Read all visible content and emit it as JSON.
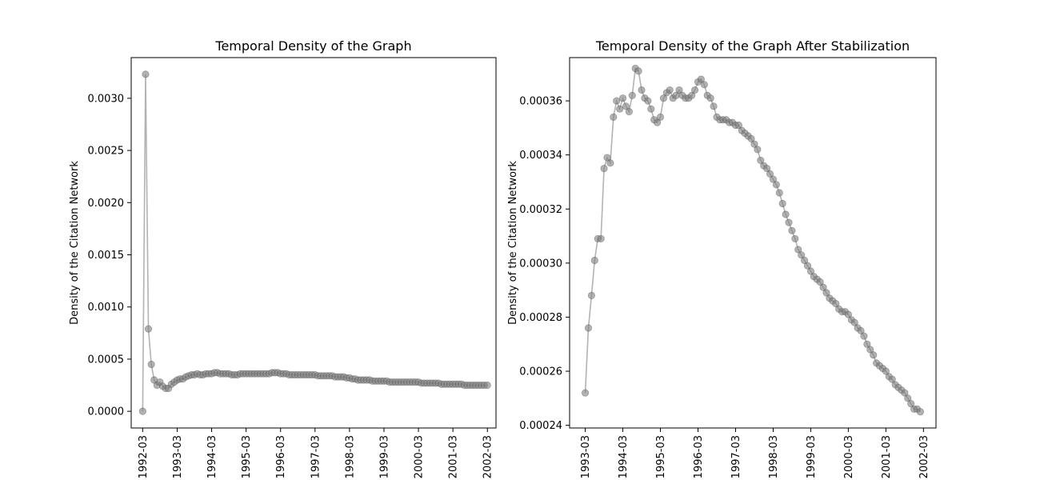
{
  "chart_data": [
    {
      "type": "line",
      "title": "Temporal Density of the Graph",
      "xlabel": "",
      "ylabel": "Density of the Citation Network",
      "xlim": [
        "1991-11",
        "2002-06"
      ],
      "ylim": [
        -0.00016,
        0.00339
      ],
      "yticks": [
        0.0,
        0.0005,
        0.001,
        0.0015,
        0.002,
        0.0025,
        0.003
      ],
      "ytick_labels": [
        "0.0000",
        "0.0005",
        "0.0010",
        "0.0015",
        "0.0020",
        "0.0025",
        "0.0030"
      ],
      "xtick_labels": [
        "1992-03",
        "1993-03",
        "1994-03",
        "1995-03",
        "1996-03",
        "1997-03",
        "1998-03",
        "1999-03",
        "2000-03",
        "2001-03",
        "2002-03"
      ],
      "grid": false,
      "marker": "circle",
      "color": "#808080",
      "series": [
        {
          "x_start": "1992-03",
          "x_step_months": 1,
          "values": [
            0.0,
            0.00323,
            0.00079,
            0.00045,
            0.0003,
            0.00025,
            0.00028,
            0.00024,
            0.00022,
            0.00022,
            0.00026,
            0.00028,
            0.0003,
            0.00031,
            0.00031,
            0.00033,
            0.00034,
            0.00035,
            0.00035,
            0.00036,
            0.00035,
            0.00035,
            0.00036,
            0.00036,
            0.00036,
            0.00037,
            0.00037,
            0.00036,
            0.00036,
            0.00036,
            0.00036,
            0.00035,
            0.00035,
            0.00035,
            0.00036,
            0.00036,
            0.00036,
            0.00036,
            0.00036,
            0.00036,
            0.00036,
            0.00036,
            0.00036,
            0.00036,
            0.00036,
            0.00037,
            0.00037,
            0.00037,
            0.00036,
            0.00036,
            0.00036,
            0.00035,
            0.00035,
            0.00035,
            0.00035,
            0.00035,
            0.00035,
            0.00035,
            0.00035,
            0.00035,
            0.00035,
            0.00034,
            0.00034,
            0.00034,
            0.00034,
            0.00034,
            0.00034,
            0.00033,
            0.00033,
            0.00033,
            0.00033,
            0.00032,
            0.00032,
            0.00031,
            0.00031,
            0.0003,
            0.0003,
            0.0003,
            0.0003,
            0.0003,
            0.00029,
            0.00029,
            0.00029,
            0.00029,
            0.00029,
            0.00029,
            0.00028,
            0.00028,
            0.00028,
            0.00028,
            0.00028,
            0.00028,
            0.00028,
            0.00028,
            0.00028,
            0.00028,
            0.00028,
            0.00027,
            0.00027,
            0.00027,
            0.00027,
            0.00027,
            0.00027,
            0.00027,
            0.00026,
            0.00026,
            0.00026,
            0.00026,
            0.00026,
            0.00026,
            0.00026,
            0.00026,
            0.00025,
            0.00025,
            0.00025,
            0.00025,
            0.00025,
            0.00025,
            0.00025,
            0.00025,
            0.00025
          ]
        }
      ]
    },
    {
      "type": "line",
      "title": "Temporal Density of the Graph After Stabilization",
      "xlabel": "",
      "ylabel": "Density of the Citation Network",
      "xlim": [
        "1992-10",
        "2002-07"
      ],
      "ylim": [
        0.000239,
        0.000376
      ],
      "yticks": [
        0.00024,
        0.00026,
        0.00028,
        0.0003,
        0.00032,
        0.00034,
        0.00036
      ],
      "ytick_labels": [
        "0.00024",
        "0.00026",
        "0.00028",
        "0.00030",
        "0.00032",
        "0.00034",
        "0.00036"
      ],
      "xtick_labels": [
        "1993-03",
        "1994-03",
        "1995-03",
        "1996-03",
        "1997-03",
        "1998-03",
        "1999-03",
        "2000-03",
        "2001-03",
        "2002-03"
      ],
      "grid": false,
      "marker": "circle",
      "color": "#808080",
      "series": [
        {
          "x_start": "1993-03",
          "x_step_months": 1,
          "values": [
            0.000252,
            0.000276,
            0.000288,
            0.000301,
            0.000309,
            0.000309,
            0.000335,
            0.000339,
            0.000337,
            0.000354,
            0.00036,
            0.000357,
            0.000361,
            0.000358,
            0.000356,
            0.000362,
            0.000372,
            0.000371,
            0.000364,
            0.000361,
            0.00036,
            0.000357,
            0.000353,
            0.000352,
            0.000354,
            0.000361,
            0.000363,
            0.000364,
            0.000361,
            0.000362,
            0.000364,
            0.000362,
            0.000361,
            0.000361,
            0.000362,
            0.000364,
            0.000367,
            0.000368,
            0.000366,
            0.000362,
            0.000361,
            0.000358,
            0.000354,
            0.000353,
            0.000353,
            0.000353,
            0.000352,
            0.000352,
            0.000351,
            0.000351,
            0.000349,
            0.000348,
            0.000347,
            0.000346,
            0.000344,
            0.000342,
            0.000338,
            0.000336,
            0.000335,
            0.000333,
            0.000331,
            0.000329,
            0.000326,
            0.000322,
            0.000318,
            0.000315,
            0.000312,
            0.000309,
            0.000305,
            0.000303,
            0.000301,
            0.000299,
            0.000297,
            0.000295,
            0.000294,
            0.000293,
            0.000291,
            0.000289,
            0.000287,
            0.000286,
            0.000285,
            0.000283,
            0.000282,
            0.000282,
            0.000281,
            0.000279,
            0.000278,
            0.000276,
            0.000275,
            0.000273,
            0.00027,
            0.000268,
            0.000266,
            0.000263,
            0.000262,
            0.000261,
            0.00026,
            0.000258,
            0.000257,
            0.000255,
            0.000254,
            0.000253,
            0.000252,
            0.00025,
            0.000248,
            0.000246,
            0.000246,
            0.000245
          ]
        }
      ]
    }
  ]
}
